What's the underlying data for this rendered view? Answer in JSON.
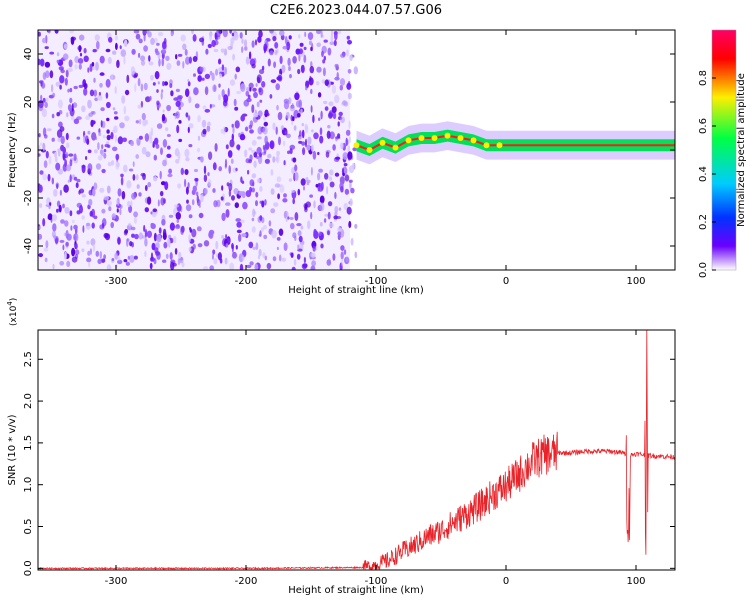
{
  "title": "C2E6.2023.044.07.57.G06",
  "chart_data": [
    {
      "type": "heatmap",
      "xlabel": "Height of straight line (km)",
      "ylabel": "Frequency (Hz)",
      "xlim": [
        -360,
        130
      ],
      "ylim": [
        -50,
        50
      ],
      "xticks": [
        -300,
        -200,
        -100,
        0,
        100
      ],
      "yticks": [
        -40,
        -20,
        0,
        20,
        40
      ],
      "noise_region_x": [
        -360,
        -120
      ],
      "signal_trace": [
        {
          "x": -115,
          "y": 2
        },
        {
          "x": -105,
          "y": 0
        },
        {
          "x": -95,
          "y": 3
        },
        {
          "x": -85,
          "y": 1
        },
        {
          "x": -75,
          "y": 4
        },
        {
          "x": -65,
          "y": 5
        },
        {
          "x": -55,
          "y": 5
        },
        {
          "x": -45,
          "y": 6
        },
        {
          "x": -35,
          "y": 5
        },
        {
          "x": -25,
          "y": 4
        },
        {
          "x": -15,
          "y": 2
        },
        {
          "x": -5,
          "y": 2
        },
        {
          "x": 5,
          "y": 2
        },
        {
          "x": 20,
          "y": 2
        },
        {
          "x": 40,
          "y": 2
        },
        {
          "x": 60,
          "y": 2
        },
        {
          "x": 80,
          "y": 2
        },
        {
          "x": 100,
          "y": 2
        },
        {
          "x": 130,
          "y": 2
        }
      ],
      "colorbar": {
        "label": "Normalized spectral amplitude",
        "ticks": [
          0.0,
          0.2,
          0.4,
          0.6,
          0.8
        ],
        "range": [
          0,
          1
        ],
        "colors": [
          "#ffffff",
          "#6a00ff",
          "#0033ff",
          "#00ccff",
          "#00ff44",
          "#ffee00",
          "#ff0000",
          "#ff0066"
        ]
      }
    },
    {
      "type": "line",
      "xlabel": "Height of straight line (km)",
      "ylabel": "SNR (10 * v/v)",
      "y_multiplier_label": "(x10",
      "y_multiplier_exp": "4",
      "y_multiplier_close": ")",
      "xlim": [
        -360,
        130
      ],
      "ylim": [
        -0.02,
        2.85
      ],
      "xticks": [
        -300,
        -200,
        -100,
        0,
        100
      ],
      "yticks": [
        "0.0",
        "0.5",
        "1.0",
        "1.5",
        "2.0",
        "2.5"
      ],
      "series": [
        {
          "color": "#e8242a",
          "x": [
            -360,
            -300,
            -200,
            -110,
            -100,
            -90,
            -80,
            -70,
            -60,
            -50,
            -40,
            -30,
            -20,
            -10,
            0,
            10,
            20,
            30,
            40,
            50,
            60,
            70,
            80,
            90,
            95,
            100,
            105,
            108,
            110,
            120,
            130
          ],
          "y": [
            0.0,
            0.0,
            0.0,
            0.01,
            0.04,
            0.1,
            0.2,
            0.28,
            0.38,
            0.45,
            0.55,
            0.65,
            0.75,
            0.88,
            0.98,
            1.12,
            1.28,
            1.36,
            1.38,
            1.38,
            1.4,
            1.4,
            1.4,
            1.38,
            1.35,
            1.37,
            1.36,
            1.35,
            1.35,
            1.34,
            1.33
          ]
        }
      ]
    }
  ]
}
